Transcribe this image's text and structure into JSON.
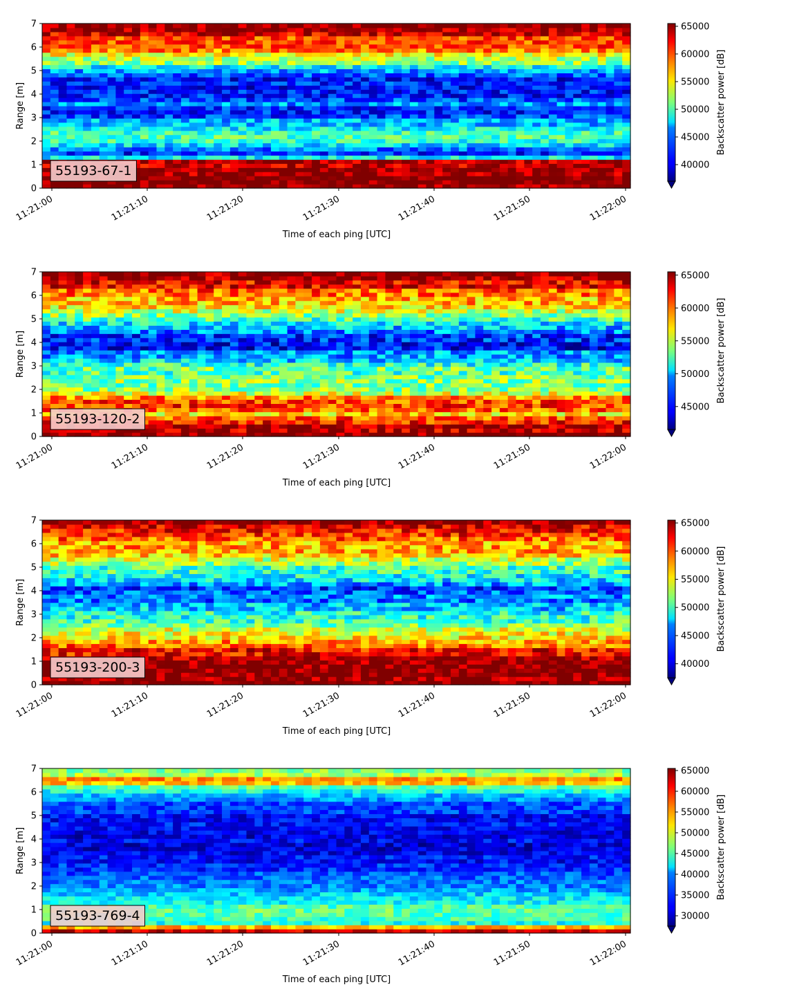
{
  "chart_data": [
    {
      "type": "heatmap",
      "label": "55193-67-1",
      "xlabel": "Time of each ping [UTC]",
      "ylabel": "Range [m]",
      "x_ticks": [
        "11:21:00",
        "11:21:10",
        "11:21:20",
        "11:21:30",
        "11:21:40",
        "11:21:50",
        "11:22:00"
      ],
      "y_ticks": [
        0,
        1,
        2,
        3,
        4,
        5,
        6,
        7
      ],
      "ylim": [
        0,
        7
      ],
      "colorbar_label": "Backscatter power [dB]",
      "colorbar_ticks": [
        40000,
        45000,
        50000,
        55000,
        60000,
        65000
      ],
      "colorbar_range": [
        37000,
        65500
      ],
      "colormap": "jet",
      "profile": [
        [
          0.0,
          64000
        ],
        [
          0.25,
          65500
        ],
        [
          0.5,
          65000
        ],
        [
          1.0,
          64000
        ],
        [
          1.2,
          63000
        ],
        [
          1.3,
          47000
        ],
        [
          1.5,
          41000
        ],
        [
          1.6,
          44000
        ],
        [
          2.0,
          50000
        ],
        [
          2.3,
          51000
        ],
        [
          2.6,
          48000
        ],
        [
          3.0,
          44000
        ],
        [
          3.3,
          41000
        ],
        [
          3.6,
          45000
        ],
        [
          4.0,
          40000
        ],
        [
          4.6,
          41500
        ],
        [
          5.0,
          44000
        ],
        [
          5.4,
          52000
        ],
        [
          5.8,
          57000
        ],
        [
          6.2,
          60000
        ],
        [
          6.6,
          62000
        ],
        [
          7.0,
          65500
        ]
      ],
      "noise": 4000
    },
    {
      "type": "heatmap",
      "label": "55193-120-2",
      "xlabel": "Time of each ping [UTC]",
      "ylabel": "Range [m]",
      "x_ticks": [
        "11:21:00",
        "11:21:10",
        "11:21:20",
        "11:21:30",
        "11:21:40",
        "11:21:50",
        "11:22:00"
      ],
      "y_ticks": [
        0,
        1,
        2,
        3,
        4,
        5,
        6,
        7
      ],
      "ylim": [
        0,
        7
      ],
      "colorbar_label": "Backscatter power [dB]",
      "colorbar_ticks": [
        45000,
        50000,
        55000,
        60000,
        65000
      ],
      "colorbar_range": [
        41500,
        65500
      ],
      "colormap": "jet",
      "profile": [
        [
          0.0,
          65000
        ],
        [
          0.3,
          65500
        ],
        [
          0.6,
          62000
        ],
        [
          1.0,
          58000
        ],
        [
          1.4,
          61000
        ],
        [
          1.7,
          59000
        ],
        [
          2.0,
          54000
        ],
        [
          2.5,
          53000
        ],
        [
          3.0,
          52000
        ],
        [
          3.5,
          48000
        ],
        [
          3.9,
          44000
        ],
        [
          4.3,
          45000
        ],
        [
          4.7,
          49000
        ],
        [
          5.2,
          54000
        ],
        [
          5.6,
          57000
        ],
        [
          6.0,
          59000
        ],
        [
          6.4,
          62000
        ],
        [
          7.0,
          65500
        ]
      ],
      "noise": 4000
    },
    {
      "type": "heatmap",
      "label": "55193-200-3",
      "xlabel": "Time of each ping [UTC]",
      "ylabel": "Range [m]",
      "x_ticks": [
        "11:21:00",
        "11:21:10",
        "11:21:20",
        "11:21:30",
        "11:21:40",
        "11:21:50",
        "11:22:00"
      ],
      "y_ticks": [
        0,
        1,
        2,
        3,
        4,
        5,
        6,
        7
      ],
      "ylim": [
        0,
        7
      ],
      "colorbar_label": "Backscatter power [dB]",
      "colorbar_ticks": [
        40000,
        45000,
        50000,
        55000,
        60000,
        65000
      ],
      "colorbar_range": [
        37500,
        65500
      ],
      "colormap": "jet",
      "profile": [
        [
          0.0,
          65000
        ],
        [
          0.4,
          65500
        ],
        [
          1.0,
          64500
        ],
        [
          1.4,
          62000
        ],
        [
          1.7,
          60000
        ],
        [
          2.0,
          55000
        ],
        [
          2.4,
          54000
        ],
        [
          2.8,
          50000
        ],
        [
          3.2,
          47000
        ],
        [
          3.6,
          44000
        ],
        [
          4.1,
          43000
        ],
        [
          4.6,
          47000
        ],
        [
          5.0,
          51000
        ],
        [
          5.5,
          55000
        ],
        [
          6.0,
          58000
        ],
        [
          6.5,
          62000
        ],
        [
          7.0,
          65500
        ]
      ],
      "noise": 4500
    },
    {
      "type": "heatmap",
      "label": "55193-769-4",
      "xlabel": "Time of each ping [UTC]",
      "ylabel": "Range [m]",
      "x_ticks": [
        "11:21:00",
        "11:21:10",
        "11:21:20",
        "11:21:30",
        "11:21:40",
        "11:21:50",
        "11:22:00"
      ],
      "y_ticks": [
        0,
        1,
        2,
        3,
        4,
        5,
        6,
        7
      ],
      "ylim": [
        0,
        7
      ],
      "colorbar_label": "Backscatter power [dB]",
      "colorbar_ticks": [
        30000,
        35000,
        40000,
        45000,
        50000,
        55000,
        60000,
        65000
      ],
      "colorbar_range": [
        27500,
        65500
      ],
      "colormap": "jet",
      "profile": [
        [
          0.0,
          60000
        ],
        [
          0.2,
          65000
        ],
        [
          0.35,
          40000
        ],
        [
          0.6,
          44000
        ],
        [
          1.0,
          45000
        ],
        [
          1.4,
          42000
        ],
        [
          2.0,
          37000
        ],
        [
          2.6,
          34000
        ],
        [
          3.2,
          32000
        ],
        [
          4.0,
          31000
        ],
        [
          4.8,
          32000
        ],
        [
          5.3,
          34000
        ],
        [
          5.8,
          38000
        ],
        [
          6.2,
          45000
        ],
        [
          6.5,
          60000
        ],
        [
          6.7,
          50000
        ],
        [
          7.0,
          46000
        ]
      ],
      "noise": 4000
    }
  ]
}
